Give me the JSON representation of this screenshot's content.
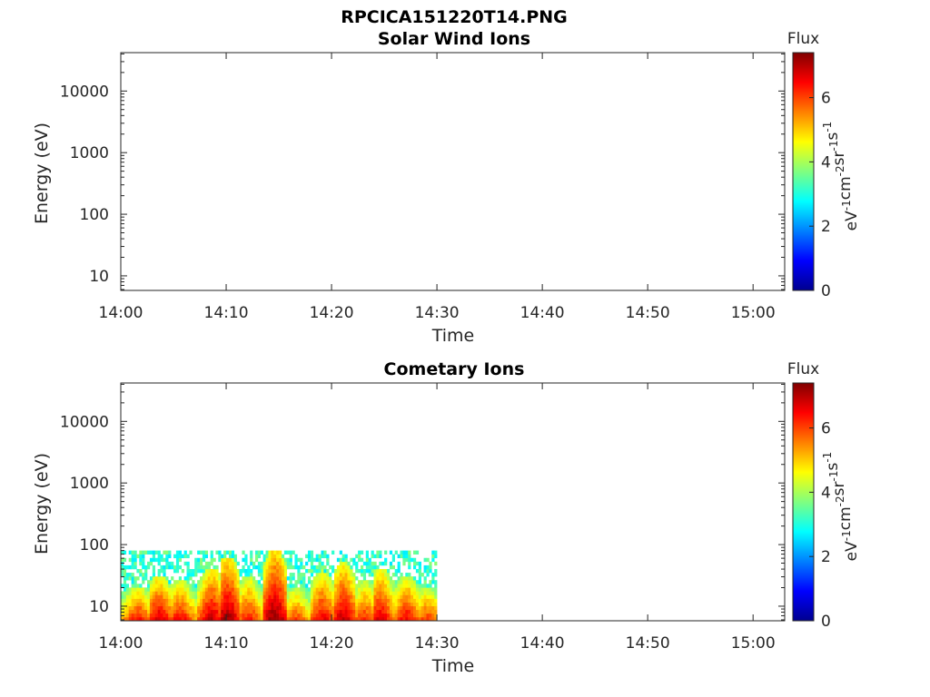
{
  "figure_title": "RPCICA151220T14.PNG",
  "chart_data": [
    {
      "type": "heatmap",
      "title": "Solar Wind Ions",
      "xlabel": "Time",
      "ylabel": "Energy (eV)",
      "x_ticks": [
        "14:00",
        "14:10",
        "14:20",
        "14:30",
        "14:40",
        "14:50",
        "15:00"
      ],
      "x_range_minutes": [
        0,
        63
      ],
      "y_scale": "log",
      "y_ticks": [
        "10",
        "100",
        "1000",
        "10000"
      ],
      "y_range": [
        5.8,
        42000
      ],
      "colorbar": {
        "title": "Flux",
        "label": "eV-1cm-2sr-1s-1",
        "ticks": [
          "0",
          "2",
          "4",
          "6"
        ],
        "range": [
          0,
          7.4
        ]
      },
      "grid": false,
      "columns": []
    },
    {
      "type": "heatmap",
      "title": "Cometary Ions",
      "xlabel": "Time",
      "ylabel": "Energy (eV)",
      "x_ticks": [
        "14:00",
        "14:10",
        "14:20",
        "14:30",
        "14:40",
        "14:50",
        "15:00"
      ],
      "x_range_minutes": [
        0,
        63
      ],
      "y_scale": "log",
      "y_ticks": [
        "10",
        "100",
        "1000",
        "10000"
      ],
      "y_range": [
        5.8,
        42000
      ],
      "colorbar": {
        "title": "Flux",
        "label": "eV-1cm-2sr-1s-1",
        "ticks": [
          "0",
          "2",
          "4",
          "6"
        ],
        "range": [
          0,
          7.4
        ]
      },
      "grid": false,
      "data_extent_minutes": [
        0,
        30
      ],
      "columns": [
        {
          "minute": 1.5,
          "peak_energy_eV": 20,
          "peak_flux": 6.4
        },
        {
          "minute": 3.5,
          "peak_energy_eV": 30,
          "peak_flux": 6.8
        },
        {
          "minute": 5.5,
          "peak_energy_eV": 25,
          "peak_flux": 6.5
        },
        {
          "minute": 8.5,
          "peak_energy_eV": 40,
          "peak_flux": 6.9
        },
        {
          "minute": 10,
          "peak_energy_eV": 60,
          "peak_flux": 7.2
        },
        {
          "minute": 12,
          "peak_energy_eV": 30,
          "peak_flux": 6.3
        },
        {
          "minute": 14.5,
          "peak_energy_eV": 80,
          "peak_flux": 7.3
        },
        {
          "minute": 16.5,
          "peak_energy_eV": 20,
          "peak_flux": 6.0
        },
        {
          "minute": 19,
          "peak_energy_eV": 35,
          "peak_flux": 6.6
        },
        {
          "minute": 21,
          "peak_energy_eV": 50,
          "peak_flux": 6.9
        },
        {
          "minute": 23,
          "peak_energy_eV": 25,
          "peak_flux": 6.2
        },
        {
          "minute": 24.5,
          "peak_energy_eV": 40,
          "peak_flux": 6.7
        },
        {
          "minute": 27,
          "peak_energy_eV": 30,
          "peak_flux": 6.5
        },
        {
          "minute": 29,
          "peak_energy_eV": 20,
          "peak_flux": 6.1
        }
      ]
    }
  ]
}
